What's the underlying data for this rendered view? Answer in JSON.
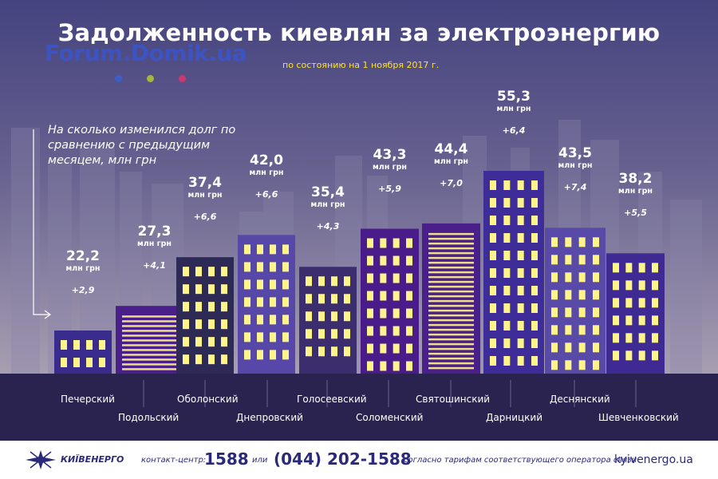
{
  "header": {
    "title": "Задолженность киевлян за электроэнергию",
    "subtitle": "по состоянию на 1 ноября 2017 г.",
    "watermark": "Forum.Domik.ua"
  },
  "legend": {
    "text": "На сколько изменился долг по сравнению с предыдущим месяцем, млн грн"
  },
  "chart_data": {
    "type": "bar",
    "title": "Задолженность киевлян за электроэнергию",
    "subtitle": "по состоянию на 1 ноября 2017 г.",
    "unit": "млн грн",
    "categories": [
      "Печерский",
      "Подольский",
      "Оболонский",
      "Днепровский",
      "Голосеевский",
      "Соломенский",
      "Святошинский",
      "Дарницкий",
      "Деснянский",
      "Шевченковский"
    ],
    "values": [
      22.2,
      27.3,
      37.4,
      42.0,
      35.4,
      43.3,
      44.4,
      55.3,
      43.5,
      38.2
    ],
    "value_labels": [
      "22,2",
      "27,3",
      "37,4",
      "42,0",
      "35,4",
      "43,3",
      "44,4",
      "55,3",
      "43,5",
      "38,2"
    ],
    "change": [
      2.9,
      4.1,
      6.6,
      6.6,
      4.3,
      5.9,
      7.0,
      6.4,
      7.4,
      5.5
    ],
    "change_labels": [
      "+2,9",
      "+4,1",
      "+6,6",
      "+6,6",
      "+4,3",
      "+5,9",
      "+7,0",
      "+6,4",
      "+7,4",
      "+5,5"
    ],
    "change_caption": "На сколько изменился долг по сравнению с предыдущим месяцем, млн грн",
    "ylim": [
      0,
      55.3
    ],
    "grid": false
  },
  "colors": {
    "sky_top": "#4a4785",
    "sky_bottom": "#a39bb0",
    "ground": "#2b234f",
    "window": "#fdf58a",
    "accent_yellow": "#ffe033",
    "dot_blue": "#3b5ec9",
    "dot_green": "#a5b63c",
    "dot_pink": "#c83a6e"
  },
  "footer": {
    "brand": "КИЇВЕНЕРГО",
    "contact_label": "контакт-центр:",
    "short_number": "1588",
    "or_label": "или",
    "long_number": "(044) 202-1588",
    "tariff_note": "согласно тарифам соответствующего оператора связи",
    "site": "kyivenergo.ua"
  }
}
